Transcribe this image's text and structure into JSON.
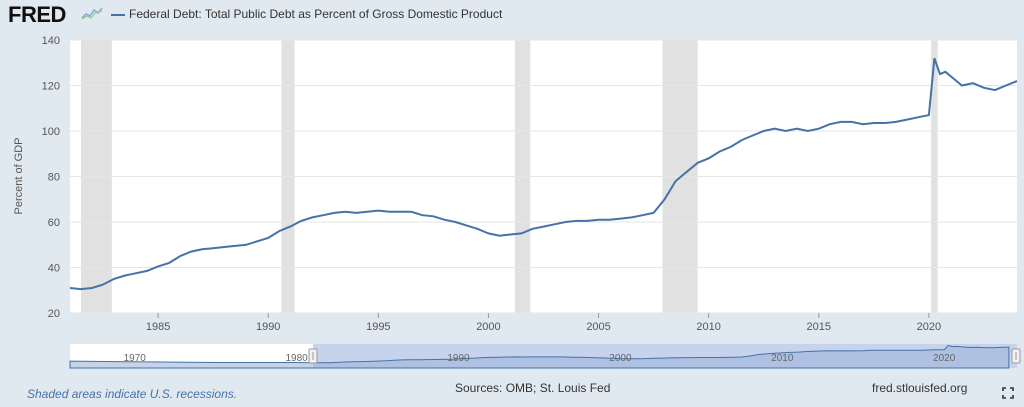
{
  "header": {
    "logo_text": "FRED",
    "logo_icon": "fred-chart-icon",
    "legend_label": "Federal Debt: Total Public Debt as Percent of Gross Domestic Product"
  },
  "footer": {
    "recession_note": "Shaded areas indicate U.S. recessions.",
    "sources": "Sources: OMB; St. Louis Fed",
    "site": "fred.stlouisfed.org",
    "fullscreen_icon": "fullscreen-icon"
  },
  "navigator": {
    "tick_labels": [
      "1970",
      "1980",
      "1990",
      "2000",
      "2010",
      "2020"
    ],
    "tick_years": [
      1970,
      1980,
      1990,
      2000,
      2010,
      2020
    ]
  },
  "colors": {
    "series": "#4572a7",
    "recession": "#e1e1e1",
    "background": "#e1e9f0",
    "plot": "#ffffff",
    "navigator_selected": "#c7d3ec"
  },
  "chart_data": {
    "type": "line",
    "title": "",
    "xlabel": "",
    "ylabel": "Percent of GDP",
    "xlim": [
      1981.0,
      2024.0
    ],
    "ylim": [
      20,
      140
    ],
    "y_ticks": [
      20,
      40,
      60,
      80,
      100,
      120,
      140
    ],
    "x_ticks": [
      1985,
      1990,
      1995,
      2000,
      2005,
      2010,
      2015,
      2020
    ],
    "x_tick_labels": [
      "1985",
      "1990",
      "1995",
      "2000",
      "2005",
      "2010",
      "2015",
      "2020"
    ],
    "y_tick_labels": [
      "20",
      "40",
      "60",
      "80",
      "100",
      "120",
      "140"
    ],
    "grid": true,
    "recessions": [
      [
        1981.5,
        1982.9
      ],
      [
        1990.6,
        1991.2
      ],
      [
        2001.2,
        2001.9
      ],
      [
        2007.9,
        2009.5
      ],
      [
        2020.1,
        2020.4
      ]
    ],
    "series": [
      {
        "name": "Federal Debt: Total Public Debt as Percent of Gross Domestic Product",
        "x": [
          1981.0,
          1981.5,
          1982.0,
          1982.5,
          1983.0,
          1983.5,
          1984.0,
          1984.5,
          1985.0,
          1985.5,
          1986.0,
          1986.5,
          1987.0,
          1987.5,
          1988.0,
          1988.5,
          1989.0,
          1989.5,
          1990.0,
          1990.5,
          1991.0,
          1991.5,
          1992.0,
          1992.5,
          1993.0,
          1993.5,
          1994.0,
          1994.5,
          1995.0,
          1995.5,
          1996.0,
          1996.5,
          1997.0,
          1997.5,
          1998.0,
          1998.5,
          1999.0,
          1999.5,
          2000.0,
          2000.5,
          2001.0,
          2001.5,
          2002.0,
          2002.5,
          2003.0,
          2003.5,
          2004.0,
          2004.5,
          2005.0,
          2005.5,
          2006.0,
          2006.5,
          2007.0,
          2007.5,
          2008.0,
          2008.5,
          2009.0,
          2009.5,
          2010.0,
          2010.5,
          2011.0,
          2011.5,
          2012.0,
          2012.5,
          2013.0,
          2013.5,
          2014.0,
          2014.5,
          2015.0,
          2015.5,
          2016.0,
          2016.5,
          2017.0,
          2017.5,
          2018.0,
          2018.5,
          2019.0,
          2019.5,
          2020.0,
          2020.25,
          2020.5,
          2020.75,
          2021.0,
          2021.5,
          2022.0,
          2022.5,
          2023.0,
          2023.5,
          2024.0
        ],
        "y": [
          31,
          30.5,
          31,
          32.5,
          35,
          36.5,
          37.5,
          38.5,
          40.5,
          42,
          45,
          47,
          48,
          48.5,
          49,
          49.5,
          50,
          51.5,
          53,
          56,
          58,
          60.5,
          62,
          63,
          64,
          64.5,
          64,
          64.5,
          65,
          64.5,
          64.5,
          64.5,
          63,
          62.5,
          61,
          60,
          58.5,
          57,
          55,
          54,
          54.5,
          55,
          57,
          58,
          59,
          60,
          60.5,
          60.5,
          61,
          61,
          61.5,
          62,
          63,
          64,
          70,
          78,
          82,
          86,
          88,
          91,
          93,
          96,
          98,
          100,
          101,
          100,
          101,
          100,
          101,
          103,
          104,
          104,
          103,
          103.5,
          103.5,
          104,
          105,
          106,
          107,
          132,
          125,
          126,
          124,
          120,
          121,
          119,
          118,
          120,
          122
        ]
      }
    ]
  }
}
